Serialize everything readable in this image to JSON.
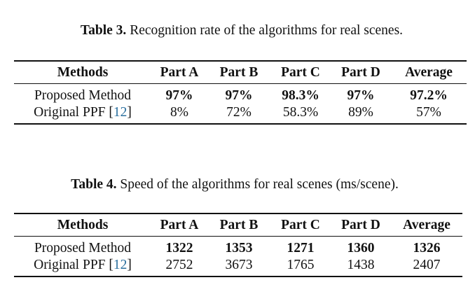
{
  "table3": {
    "caption_label": "Table 3.",
    "caption_text": "Recognition rate of the algorithms for real scenes.",
    "headers": [
      "Methods",
      "Part A",
      "Part B",
      "Part C",
      "Part D",
      "Average"
    ],
    "rows": [
      {
        "method": "Proposed Method",
        "ref": "",
        "values": [
          "97%",
          "97%",
          "98.3%",
          "97%",
          "97.2%"
        ]
      },
      {
        "method": "Original PPF [",
        "ref": "12",
        "method_end": "]",
        "values": [
          "8%",
          "72%",
          "58.3%",
          "89%",
          "57%"
        ]
      }
    ]
  },
  "table4": {
    "caption_label": "Table 4.",
    "caption_text": "Speed of the algorithms for real scenes (ms/scene).",
    "headers": [
      "Methods",
      "Part A",
      "Part B",
      "Part C",
      "Part D",
      "Average"
    ],
    "rows": [
      {
        "method": "Proposed Method",
        "ref": "",
        "values": [
          "1322",
          "1353",
          "1271",
          "1360",
          "1326"
        ]
      },
      {
        "method": "Original PPF [",
        "ref": "12",
        "method_end": "]",
        "values": [
          "2752",
          "3673",
          "1765",
          "1438",
          "2407"
        ]
      }
    ]
  },
  "colors": {
    "text": "#111111",
    "citation_link": "#2a6f9e",
    "background": "#ffffff"
  }
}
